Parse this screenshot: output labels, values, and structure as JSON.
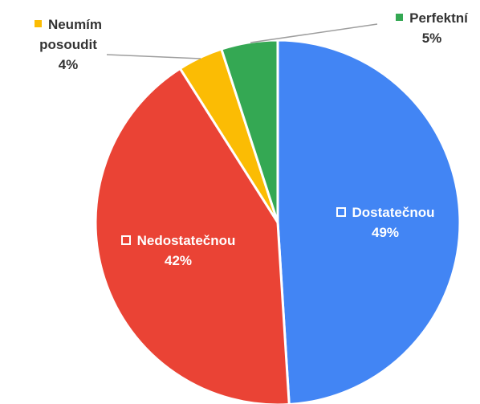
{
  "chart_data": {
    "type": "pie",
    "categories": [
      "Dostatečnou",
      "Nedostatečnou",
      "Neumím posoudit",
      "Perfektní"
    ],
    "values": [
      49,
      42,
      4,
      5
    ],
    "value_labels": [
      "49%",
      "42%",
      "4%",
      "5%"
    ],
    "colors": [
      "#4285f4",
      "#ea4335",
      "#fbbc04",
      "#34a853"
    ]
  }
}
